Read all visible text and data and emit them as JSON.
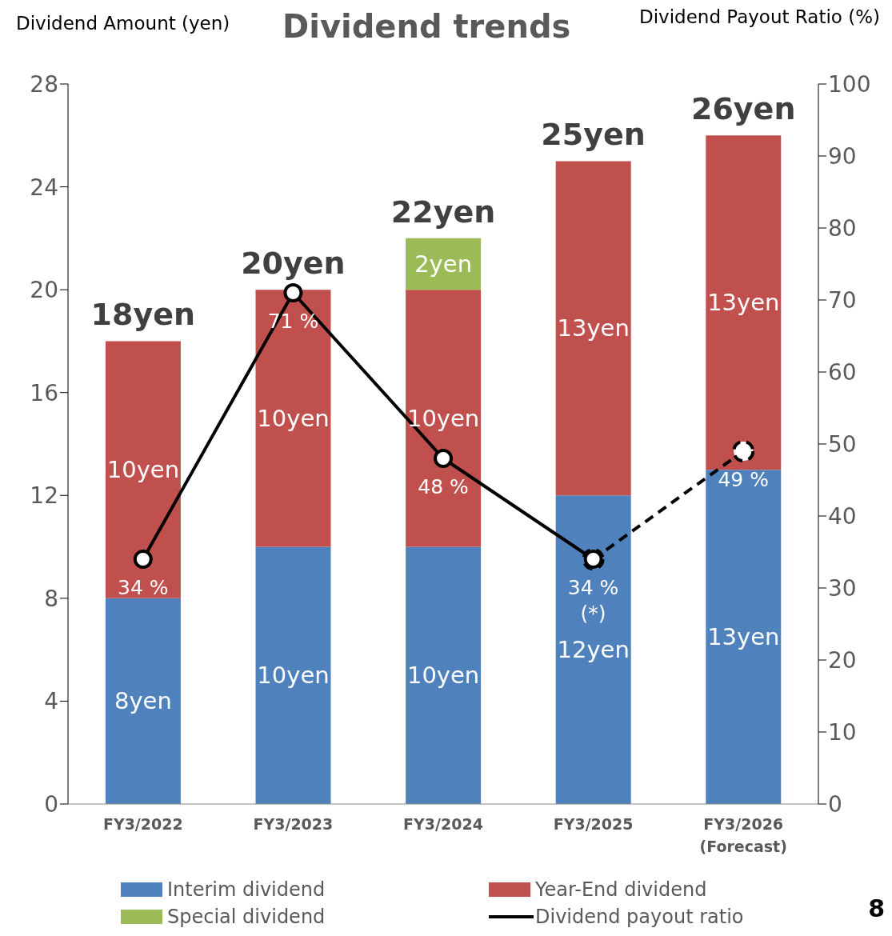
{
  "chart_data": {
    "type": "bar",
    "title": "Dividend trends",
    "ylabel": "Dividend Amount (yen)",
    "y2label": "Dividend Payout Ratio (%)",
    "categories": [
      "FY3/2022",
      "FY3/2023",
      "FY3/2024",
      "FY3/2025",
      "FY3/2026\n(Forecast)"
    ],
    "stacked": true,
    "series": [
      {
        "name": "Interim dividend",
        "color": "#4f81bd",
        "values": [
          8,
          10,
          10,
          12,
          13
        ],
        "value_labels": [
          "8yen",
          "10yen",
          "10yen",
          "12yen",
          "13yen"
        ]
      },
      {
        "name": "Year-End dividend",
        "color": "#c0504d",
        "values": [
          10,
          10,
          10,
          13,
          13
        ],
        "value_labels": [
          "10yen",
          "10yen",
          "10yen",
          "13yen",
          "13yen"
        ]
      },
      {
        "name": "Special dividend",
        "color": "#9bbb59",
        "values": [
          null,
          null,
          2,
          null,
          null
        ],
        "value_labels": [
          null,
          null,
          "2yen",
          null,
          null
        ]
      },
      {
        "name": "Dividend payout ratio",
        "type": "line",
        "axis": "y2",
        "color": "#000000",
        "line_style": "solid",
        "marker": "circle",
        "values": [
          34,
          71,
          48,
          34,
          null
        ],
        "value_labels": [
          "34 %",
          "71 %",
          "48 %",
          "34 %\n(*)",
          null
        ]
      },
      {
        "type": "line",
        "axis": "y2",
        "color": "#000000",
        "line_style": "dashed",
        "marker": "circle",
        "values": [
          null,
          null,
          null,
          34,
          49
        ],
        "value_labels": [
          null,
          null,
          null,
          null,
          "49 %"
        ]
      }
    ],
    "totals": [
      "18yen",
      "20yen",
      "22yen",
      "25yen",
      "26yen"
    ],
    "ylim": [
      0,
      28
    ],
    "yticks": [
      0,
      4,
      8,
      12,
      16,
      20,
      24,
      28
    ],
    "y2lim": [
      0,
      100
    ],
    "y2ticks": [
      0,
      10,
      20,
      30,
      40,
      50,
      60,
      70,
      80,
      90,
      100
    ],
    "grid": false,
    "legend": "bottom",
    "annotations": [
      "8"
    ]
  }
}
